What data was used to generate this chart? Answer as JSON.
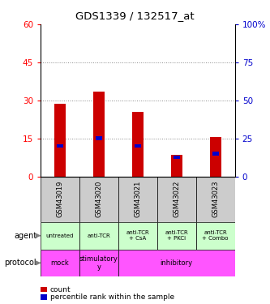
{
  "title": "GDS1339 / 132517_at",
  "samples": [
    "GSM43019",
    "GSM43020",
    "GSM43021",
    "GSM43022",
    "GSM43023"
  ],
  "count_values": [
    28.5,
    33.5,
    25.5,
    8.5,
    15.5
  ],
  "percentile_values": [
    20.0,
    25.0,
    20.0,
    12.5,
    15.0
  ],
  "left_ylim": [
    0,
    60
  ],
  "left_yticks": [
    0,
    15,
    30,
    45,
    60
  ],
  "right_ylim": [
    0,
    100
  ],
  "right_yticks": [
    0,
    25,
    50,
    75,
    100
  ],
  "left_ycolor": "#ff0000",
  "right_ycolor": "#0000cc",
  "bar_color": "#cc0000",
  "percentile_color": "#0000cc",
  "bar_width": 0.3,
  "agent_labels": [
    "untreated",
    "anti-TCR",
    "anti-TCR\n+ CsA",
    "anti-TCR\n+ PKCi",
    "anti-TCR\n+ Combo"
  ],
  "agent_bg_color": "#ccffcc",
  "protocol_spans": [
    {
      "label": "mock",
      "start": 0,
      "end": 1
    },
    {
      "label": "stimulatory\ny",
      "start": 1,
      "end": 2
    },
    {
      "label": "inhibitory",
      "start": 2,
      "end": 5
    }
  ],
  "protocol_color": "#ff55ff",
  "gsm_bg_color": "#cccccc",
  "legend_count_color": "#cc0000",
  "legend_pct_color": "#0000cc",
  "dotted_grid_color": "#888888",
  "grid_yticks": [
    15,
    30,
    45
  ]
}
